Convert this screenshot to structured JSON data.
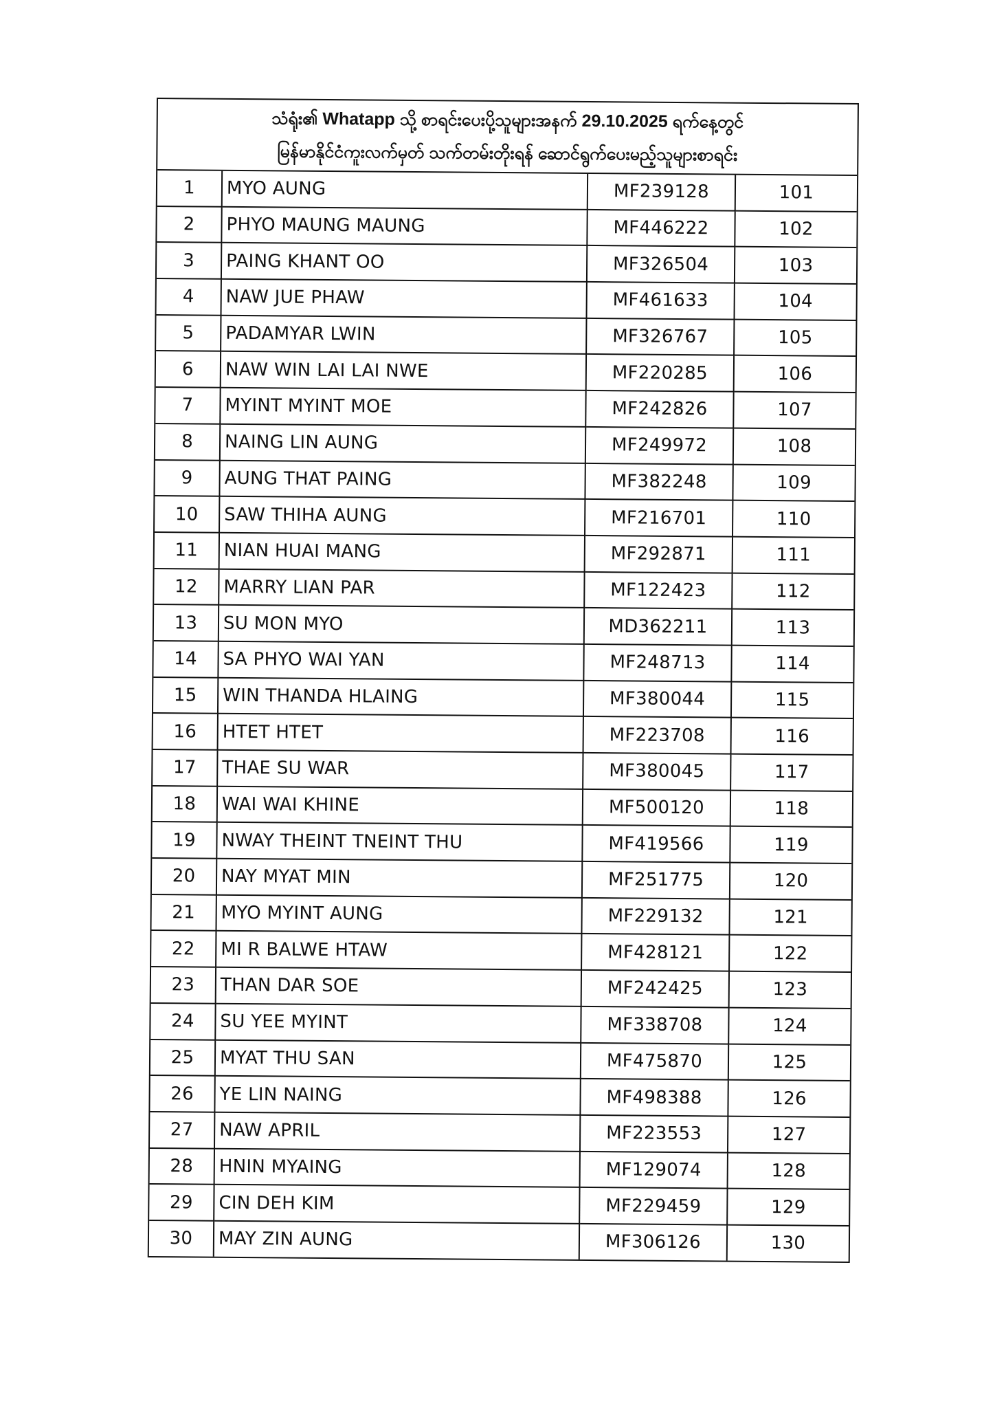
{
  "document": {
    "title_line_1": "သံရုံး၏ Whatapp သို့ စာရင်းပေးပို့သူများအနက် 29.10.2025 ရက်နေ့တွင်",
    "title_line_2": "မြန်မာနိုင်ငံကူးလက်မှတ် သက်တမ်းတိုးရန် ဆောင်ရွက်ပေးမည့်သူများစာရင်း",
    "rows": [
      {
        "no": "1",
        "name": "MYO AUNG",
        "passport": "MF239128",
        "queue": "101"
      },
      {
        "no": "2",
        "name": "PHYO MAUNG MAUNG",
        "passport": "MF446222",
        "queue": "102"
      },
      {
        "no": "3",
        "name": "PAING KHANT OO",
        "passport": "MF326504",
        "queue": "103"
      },
      {
        "no": "4",
        "name": "NAW JUE PHAW",
        "passport": "MF461633",
        "queue": "104"
      },
      {
        "no": "5",
        "name": "PADAMYAR LWIN",
        "passport": "MF326767",
        "queue": "105"
      },
      {
        "no": "6",
        "name": "NAW WIN LAI LAI NWE",
        "passport": "MF220285",
        "queue": "106"
      },
      {
        "no": "7",
        "name": "MYINT MYINT MOE",
        "passport": "MF242826",
        "queue": "107"
      },
      {
        "no": "8",
        "name": "NAING LIN AUNG",
        "passport": "MF249972",
        "queue": "108"
      },
      {
        "no": "9",
        "name": "AUNG THAT PAING",
        "passport": "MF382248",
        "queue": "109"
      },
      {
        "no": "10",
        "name": "SAW THIHA AUNG",
        "passport": "MF216701",
        "queue": "110"
      },
      {
        "no": "11",
        "name": "NIAN HUAI MANG",
        "passport": "MF292871",
        "queue": "111"
      },
      {
        "no": "12",
        "name": "MARRY LIAN PAR",
        "passport": "MF122423",
        "queue": "112"
      },
      {
        "no": "13",
        "name": "SU MON MYO",
        "passport": "MD362211",
        "queue": "113"
      },
      {
        "no": "14",
        "name": "SA PHYO WAI YAN",
        "passport": "MF248713",
        "queue": "114"
      },
      {
        "no": "15",
        "name": "WIN THANDA HLAING",
        "passport": "MF380044",
        "queue": "115"
      },
      {
        "no": "16",
        "name": "HTET HTET",
        "passport": "MF223708",
        "queue": "116"
      },
      {
        "no": "17",
        "name": "THAE SU WAR",
        "passport": "MF380045",
        "queue": "117"
      },
      {
        "no": "18",
        "name": "WAI WAI KHINE",
        "passport": "MF500120",
        "queue": "118"
      },
      {
        "no": "19",
        "name": "NWAY THEINT TNEINT THU",
        "passport": "MF419566",
        "queue": "119"
      },
      {
        "no": "20",
        "name": "NAY MYAT MIN",
        "passport": "MF251775",
        "queue": "120"
      },
      {
        "no": "21",
        "name": "MYO MYINT AUNG",
        "passport": "MF229132",
        "queue": "121"
      },
      {
        "no": "22",
        "name": "MI R BALWE HTAW",
        "passport": "MF428121",
        "queue": "122"
      },
      {
        "no": "23",
        "name": "THAN DAR SOE",
        "passport": "MF242425",
        "queue": "123"
      },
      {
        "no": "24",
        "name": "SU YEE MYINT",
        "passport": "MF338708",
        "queue": "124"
      },
      {
        "no": "25",
        "name": "MYAT THU SAN",
        "passport": "MF475870",
        "queue": "125"
      },
      {
        "no": "26",
        "name": "YE LIN NAING",
        "passport": "MF498388",
        "queue": "126"
      },
      {
        "no": "27",
        "name": "NAW APRIL",
        "passport": "MF223553",
        "queue": "127"
      },
      {
        "no": "28",
        "name": "HNIN MYAING",
        "passport": "MF129074",
        "queue": "128"
      },
      {
        "no": "29",
        "name": "CIN DEH KIM",
        "passport": "MF229459",
        "queue": "129"
      },
      {
        "no": "30",
        "name": "MAY ZIN AUNG",
        "passport": "MF306126",
        "queue": "130"
      }
    ]
  }
}
